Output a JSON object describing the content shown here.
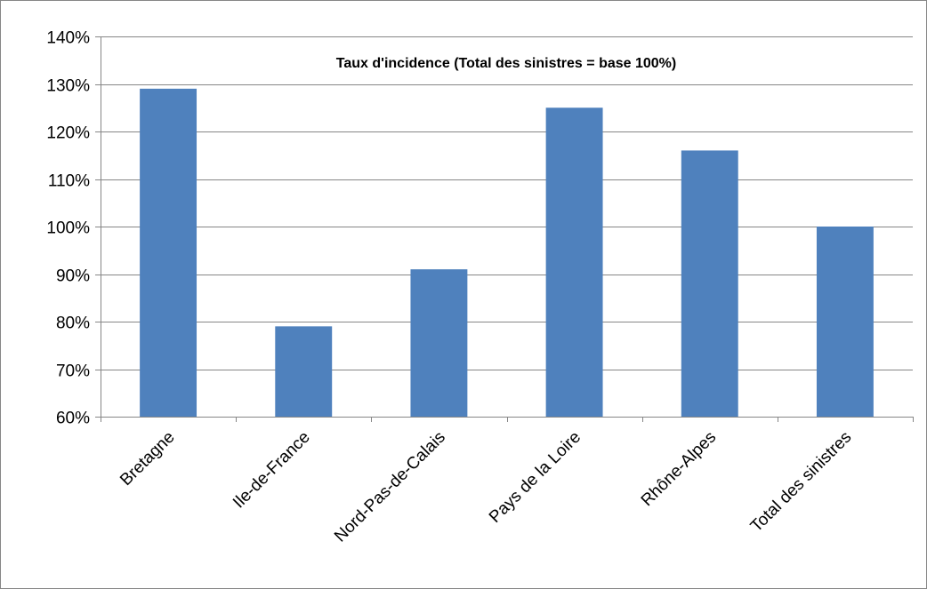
{
  "chart_data": {
    "type": "bar",
    "title": "Taux d'incidence (Total des sinistres = base 100%)",
    "xlabel": "",
    "ylabel": "",
    "categories": [
      "Bretagne",
      "Ile-de-France",
      "Nord-Pas-de-Calais",
      "Pays de la Loire",
      "Rhône-Alpes",
      "Total des sinistres"
    ],
    "values": [
      129,
      79,
      91,
      125,
      116,
      100
    ],
    "ylim": [
      60,
      140
    ],
    "y_ticks": [
      "60%",
      "70%",
      "80%",
      "90%",
      "100%",
      "110%",
      "120%",
      "130%",
      "140%"
    ],
    "grid": true,
    "legend": "none",
    "bar_color": "#4F81BD"
  }
}
